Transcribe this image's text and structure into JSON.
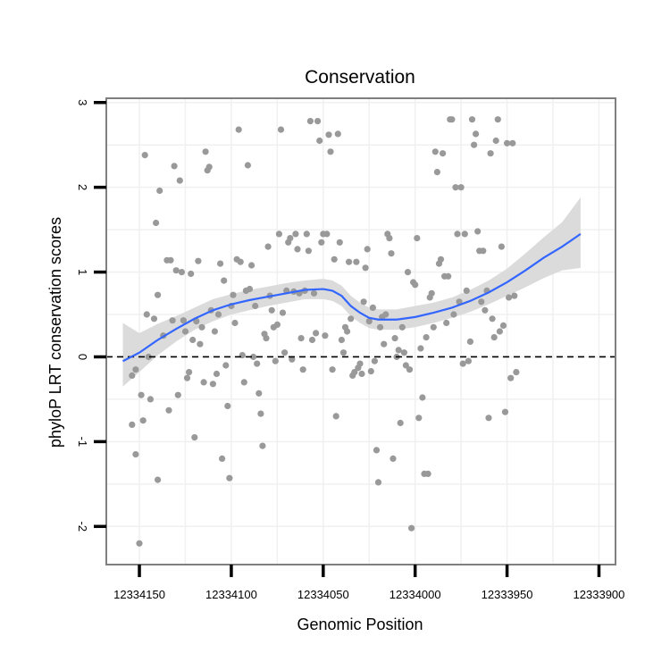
{
  "chart_data": {
    "type": "scatter",
    "title": "Conservation",
    "xlabel": "Genomic Position",
    "ylabel": "phyloP LRT conservation scores",
    "x_reversed": true,
    "xlim": [
      12334168,
      12333891
    ],
    "ylim": [
      -2.45,
      3.05
    ],
    "x_ticks": [
      12334150,
      12334100,
      12334050,
      12334000,
      12333950,
      12333900
    ],
    "x_tick_labels": [
      "12334150",
      "12334100",
      "12334050",
      "12334000",
      "12333950",
      "12333900"
    ],
    "y_ticks": [
      -2,
      -1,
      0,
      1,
      2,
      3
    ],
    "y_tick_labels": [
      "-2",
      "-1",
      "0",
      "1",
      "2",
      "3"
    ],
    "reference_line": {
      "y": 0,
      "style": "dashed"
    },
    "colors": {
      "points": "#999999",
      "smooth": "#3366ff",
      "ribbon": "#d9d9d9",
      "panel_border": "#7f7f7f",
      "grid": "#f0f0f0"
    },
    "points": [
      [
        12334154,
        -0.8
      ],
      [
        12334154,
        -0.22
      ],
      [
        12334152,
        -1.15
      ],
      [
        12334152,
        -0.15
      ],
      [
        12334150,
        -2.2
      ],
      [
        12334149,
        -0.45
      ],
      [
        12334148,
        -0.75
      ],
      [
        12334147,
        2.38
      ],
      [
        12334146,
        0.5
      ],
      [
        12334145,
        0.0
      ],
      [
        12334144,
        -0.5
      ],
      [
        12334142,
        0.45
      ],
      [
        12334141,
        1.58
      ],
      [
        12334140,
        -1.45
      ],
      [
        12334140,
        0.73
      ],
      [
        12334139,
        1.96
      ],
      [
        12334137,
        0.25
      ],
      [
        12334135,
        1.14
      ],
      [
        12334134,
        -0.63
      ],
      [
        12334133,
        1.14
      ],
      [
        12334132,
        0.43
      ],
      [
        12334131,
        2.25
      ],
      [
        12334130,
        1.02
      ],
      [
        12334129,
        -0.45
      ],
      [
        12334128,
        2.08
      ],
      [
        12334127,
        1.0
      ],
      [
        12334126,
        0.43
      ],
      [
        12334125,
        0.3
      ],
      [
        12334124,
        -0.25
      ],
      [
        12334123,
        -0.18
      ],
      [
        12334122,
        0.98
      ],
      [
        12334121,
        0.2
      ],
      [
        12334120,
        -0.95
      ],
      [
        12334119,
        0.42
      ],
      [
        12334118,
        1.13
      ],
      [
        12334117,
        0.15
      ],
      [
        12334116,
        0.35
      ],
      [
        12334115,
        -0.3
      ],
      [
        12334114,
        2.42
      ],
      [
        12334113,
        2.2
      ],
      [
        12334112,
        2.24
      ],
      [
        12334111,
        0.55
      ],
      [
        12334110,
        -0.32
      ],
      [
        12334109,
        0.3
      ],
      [
        12334108,
        -0.2
      ],
      [
        12334107,
        0.5
      ],
      [
        12334106,
        1.1
      ],
      [
        12334105,
        -1.2
      ],
      [
        12334104,
        0.9
      ],
      [
        12334103,
        -0.1
      ],
      [
        12334102,
        -0.58
      ],
      [
        12334101,
        -1.43
      ],
      [
        12334100,
        0.6
      ],
      [
        12334099,
        0.73
      ],
      [
        12334098,
        0.4
      ],
      [
        12334097,
        1.15
      ],
      [
        12334096,
        2.68
      ],
      [
        12334095,
        1.12
      ],
      [
        12334094,
        0.02
      ],
      [
        12334093,
        -0.3
      ],
      [
        12334092,
        0.78
      ],
      [
        12334091,
        2.26
      ],
      [
        12334090,
        0.8
      ],
      [
        12334089,
        1.08
      ],
      [
        12334088,
        0.0
      ],
      [
        12334087,
        0.6
      ],
      [
        12334086,
        -0.08
      ],
      [
        12334085,
        -0.43
      ],
      [
        12334084,
        -0.67
      ],
      [
        12334083,
        -1.05
      ],
      [
        12334082,
        0.27
      ],
      [
        12334081,
        0.22
      ],
      [
        12334080,
        1.3
      ],
      [
        12334079,
        0.72
      ],
      [
        12334078,
        0.55
      ],
      [
        12334077,
        0.35
      ],
      [
        12334076,
        -0.05
      ],
      [
        12334075,
        0.38
      ],
      [
        12334074,
        1.45
      ],
      [
        12334073,
        2.68
      ],
      [
        12334072,
        0.52
      ],
      [
        12334071,
        0.05
      ],
      [
        12334070,
        0.78
      ],
      [
        12334069,
        1.35
      ],
      [
        12334068,
        1.4
      ],
      [
        12334067,
        -0.03
      ],
      [
        12334066,
        0.77
      ],
      [
        12334065,
        1.45
      ],
      [
        12334064,
        1.27
      ],
      [
        12334063,
        0.75
      ],
      [
        12334062,
        0.22
      ],
      [
        12334061,
        -0.15
      ],
      [
        12334060,
        0.78
      ],
      [
        12334059,
        1.45
      ],
      [
        12334058,
        1.25
      ],
      [
        12334057,
        2.78
      ],
      [
        12334056,
        0.2
      ],
      [
        12334055,
        0.75
      ],
      [
        12334054,
        0.28
      ],
      [
        12334053,
        2.78
      ],
      [
        12334052,
        2.55
      ],
      [
        12334051,
        1.35
      ],
      [
        12334050,
        1.45
      ],
      [
        12334049,
        0.25
      ],
      [
        12334048,
        1.45
      ],
      [
        12334047,
        2.62
      ],
      [
        12334046,
        2.42
      ],
      [
        12334045,
        -0.15
      ],
      [
        12334044,
        1.15
      ],
      [
        12334043,
        -0.7
      ],
      [
        12334042,
        2.63
      ],
      [
        12334041,
        1.35
      ],
      [
        12334040,
        0.2
      ],
      [
        12334039,
        0.05
      ],
      [
        12334038,
        0.35
      ],
      [
        12334037,
        0.3
      ],
      [
        12334036,
        1.12
      ],
      [
        12334035,
        0.45
      ],
      [
        12334034,
        -0.22
      ],
      [
        12334033,
        -0.18
      ],
      [
        12334032,
        1.12
      ],
      [
        12334031,
        -0.13
      ],
      [
        12334030,
        -0.08
      ],
      [
        12334029,
        -0.2
      ],
      [
        12334028,
        0.65
      ],
      [
        12334027,
        1.05
      ],
      [
        12334026,
        1.27
      ],
      [
        12334025,
        0.42
      ],
      [
        12334024,
        -0.17
      ],
      [
        12334023,
        0.58
      ],
      [
        12334022,
        -0.05
      ],
      [
        12334021,
        -1.1
      ],
      [
        12334020,
        -1.48
      ],
      [
        12334019,
        0.35
      ],
      [
        12334018,
        0.47
      ],
      [
        12334017,
        0.15
      ],
      [
        12334016,
        0.5
      ],
      [
        12334015,
        1.45
      ],
      [
        12334014,
        1.4
      ],
      [
        12334013,
        1.22
      ],
      [
        12334012,
        -1.2
      ],
      [
        12334011,
        0.22
      ],
      [
        12334010,
        0.0
      ],
      [
        12334009,
        0.08
      ],
      [
        12334008,
        -0.78
      ],
      [
        12334007,
        0.35
      ],
      [
        12334006,
        0.05
      ],
      [
        12334005,
        -0.1
      ],
      [
        12334004,
        1.0
      ],
      [
        12334003,
        -0.15
      ],
      [
        12334002,
        -2.02
      ],
      [
        12334001,
        0.88
      ],
      [
        12334000,
        0.85
      ],
      [
        12333999,
        1.4
      ],
      [
        12333998,
        -0.72
      ],
      [
        12333997,
        0.1
      ],
      [
        12333996,
        -0.48
      ],
      [
        12333995,
        -1.38
      ],
      [
        12333994,
        0.23
      ],
      [
        12333993,
        -1.38
      ],
      [
        12333992,
        0.7
      ],
      [
        12333991,
        0.75
      ],
      [
        12333990,
        0.35
      ],
      [
        12333989,
        2.42
      ],
      [
        12333988,
        2.18
      ],
      [
        12333987,
        1.1
      ],
      [
        12333986,
        1.15
      ],
      [
        12333985,
        2.4
      ],
      [
        12333984,
        0.95
      ],
      [
        12333983,
        0.4
      ],
      [
        12333982,
        0.95
      ],
      [
        12333981,
        2.8
      ],
      [
        12333980,
        2.8
      ],
      [
        12333979,
        0.5
      ],
      [
        12333978,
        2.0
      ],
      [
        12333977,
        1.45
      ],
      [
        12333976,
        0.65
      ],
      [
        12333975,
        2.0
      ],
      [
        12333974,
        -0.08
      ],
      [
        12333973,
        1.45
      ],
      [
        12333972,
        0.78
      ],
      [
        12333971,
        -0.05
      ],
      [
        12333970,
        0.18
      ],
      [
        12333969,
        2.8
      ],
      [
        12333968,
        2.5
      ],
      [
        12333967,
        2.63
      ],
      [
        12333966,
        1.48
      ],
      [
        12333965,
        1.25
      ],
      [
        12333964,
        0.65
      ],
      [
        12333963,
        1.25
      ],
      [
        12333962,
        0.55
      ],
      [
        12333961,
        0.78
      ],
      [
        12333960,
        -0.72
      ],
      [
        12333959,
        2.4
      ],
      [
        12333958,
        0.45
      ],
      [
        12333957,
        0.23
      ],
      [
        12333956,
        2.55
      ],
      [
        12333955,
        2.8
      ],
      [
        12333954,
        0.3
      ],
      [
        12333953,
        1.3
      ],
      [
        12333952,
        0.37
      ],
      [
        12333951,
        -0.65
      ],
      [
        12333950,
        2.52
      ],
      [
        12333949,
        0.7
      ],
      [
        12333948,
        -0.25
      ],
      [
        12333947,
        2.52
      ],
      [
        12333946,
        0.72
      ],
      [
        12333945,
        -0.18
      ]
    ],
    "smooth": [
      [
        12334159,
        -0.05
      ],
      [
        12334150,
        0.05
      ],
      [
        12334140,
        0.2
      ],
      [
        12334130,
        0.33
      ],
      [
        12334120,
        0.45
      ],
      [
        12334110,
        0.55
      ],
      [
        12334100,
        0.62
      ],
      [
        12334090,
        0.67
      ],
      [
        12334080,
        0.71
      ],
      [
        12334070,
        0.75
      ],
      [
        12334060,
        0.79
      ],
      [
        12334050,
        0.8
      ],
      [
        12334045,
        0.78
      ],
      [
        12334040,
        0.72
      ],
      [
        12334035,
        0.6
      ],
      [
        12334030,
        0.52
      ],
      [
        12334025,
        0.46
      ],
      [
        12334020,
        0.44
      ],
      [
        12334010,
        0.44
      ],
      [
        12334000,
        0.47
      ],
      [
        12333990,
        0.52
      ],
      [
        12333980,
        0.58
      ],
      [
        12333970,
        0.66
      ],
      [
        12333960,
        0.76
      ],
      [
        12333950,
        0.88
      ],
      [
        12333940,
        1.02
      ],
      [
        12333930,
        1.17
      ],
      [
        12333920,
        1.3
      ],
      [
        12333910,
        1.45
      ]
    ],
    "ribbon_lower": [
      [
        12334159,
        -0.35
      ],
      [
        12334150,
        -0.18
      ],
      [
        12334140,
        0.02
      ],
      [
        12334130,
        0.18
      ],
      [
        12334120,
        0.32
      ],
      [
        12334110,
        0.42
      ],
      [
        12334100,
        0.5
      ],
      [
        12334090,
        0.55
      ],
      [
        12334080,
        0.6
      ],
      [
        12334070,
        0.64
      ],
      [
        12334060,
        0.68
      ],
      [
        12334050,
        0.68
      ],
      [
        12334045,
        0.66
      ],
      [
        12334040,
        0.6
      ],
      [
        12334035,
        0.48
      ],
      [
        12334030,
        0.4
      ],
      [
        12334025,
        0.34
      ],
      [
        12334020,
        0.32
      ],
      [
        12334010,
        0.32
      ],
      [
        12334000,
        0.35
      ],
      [
        12333990,
        0.4
      ],
      [
        12333980,
        0.46
      ],
      [
        12333970,
        0.53
      ],
      [
        12333960,
        0.62
      ],
      [
        12333950,
        0.72
      ],
      [
        12333940,
        0.82
      ],
      [
        12333930,
        0.93
      ],
      [
        12333920,
        1.02
      ],
      [
        12333910,
        1.05
      ]
    ],
    "ribbon_upper": [
      [
        12334159,
        0.4
      ],
      [
        12334150,
        0.28
      ],
      [
        12334140,
        0.39
      ],
      [
        12334130,
        0.48
      ],
      [
        12334120,
        0.58
      ],
      [
        12334110,
        0.68
      ],
      [
        12334100,
        0.74
      ],
      [
        12334090,
        0.79
      ],
      [
        12334080,
        0.83
      ],
      [
        12334070,
        0.87
      ],
      [
        12334060,
        0.9
      ],
      [
        12334050,
        0.92
      ],
      [
        12334045,
        0.9
      ],
      [
        12334040,
        0.84
      ],
      [
        12334035,
        0.72
      ],
      [
        12334030,
        0.64
      ],
      [
        12334025,
        0.58
      ],
      [
        12334020,
        0.56
      ],
      [
        12334010,
        0.56
      ],
      [
        12334000,
        0.6
      ],
      [
        12333990,
        0.64
      ],
      [
        12333980,
        0.7
      ],
      [
        12333970,
        0.79
      ],
      [
        12333960,
        0.9
      ],
      [
        12333950,
        1.04
      ],
      [
        12333940,
        1.22
      ],
      [
        12333930,
        1.41
      ],
      [
        12333920,
        1.59
      ],
      [
        12333910,
        1.88
      ]
    ]
  }
}
